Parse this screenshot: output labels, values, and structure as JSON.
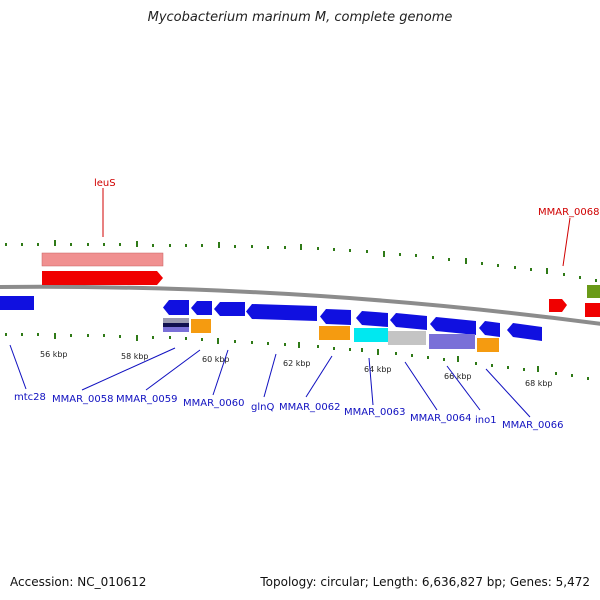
{
  "title": "Mycobacterium marinum M, complete genome",
  "colors": {
    "blue": "#1010e0",
    "red": "#f00000",
    "pink": "#f09090",
    "orange": "#f59b10",
    "cyan": "#00e8f0",
    "gray": "#c4c4c4",
    "purple": "#7a70d8",
    "green": "#6a9a18",
    "backbone": "#8c8c8c",
    "tickmark": "#2f7a17",
    "label_blue": "#1010c0",
    "label_red": "#d00000"
  },
  "ticks": [
    "56 kbp",
    "58 kbp",
    "60 kbp",
    "62 kbp",
    "64 kbp",
    "66 kbp",
    "68 kbp"
  ],
  "labels": {
    "mtc28": "mtc28",
    "MMAR_0058": "MMAR_0058",
    "MMAR_0059": "MMAR_0059",
    "MMAR_0060": "MMAR_0060",
    "glnQ": "glnQ",
    "MMAR_0062": "MMAR_0062",
    "MMAR_0063": "MMAR_0063",
    "MMAR_0064": "MMAR_0064",
    "ino1": "ino1",
    "MMAR_0066": "MMAR_0066",
    "leuS": "leuS",
    "MMAR_0068": "MMAR_0068"
  },
  "footer": {
    "accession": "Accession: NC_010612",
    "topology": "Topology: circular; Length: 6,636,827 bp; Genes: 5,472"
  }
}
